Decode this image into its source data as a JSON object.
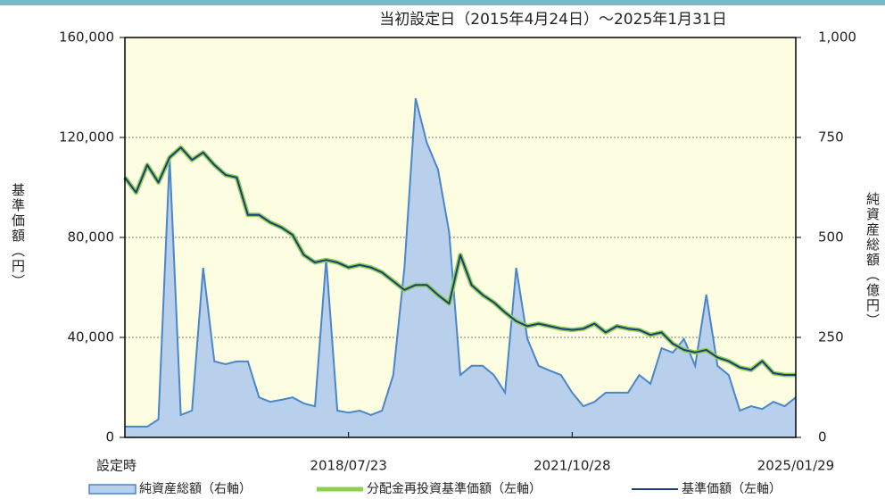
{
  "chart_data": {
    "type": "area-line",
    "title": "当初設定日（2015年4月24日）～2025年1月31日",
    "y_label": "基準価額（円）",
    "y2_label": "純資産総額（億円）",
    "categories": [
      "設定時",
      null,
      null,
      null,
      null,
      null,
      null,
      null,
      null,
      null,
      null,
      null,
      null,
      null,
      null,
      null,
      null,
      null,
      null,
      null,
      "2018/07/23",
      null,
      null,
      null,
      null,
      null,
      null,
      null,
      null,
      null,
      null,
      null,
      null,
      null,
      null,
      null,
      null,
      null,
      null,
      null,
      "2021/10/28",
      null,
      null,
      null,
      null,
      null,
      null,
      null,
      null,
      null,
      null,
      null,
      null,
      null,
      null,
      null,
      null,
      null,
      null,
      null,
      "2025/01/29"
    ],
    "ylim": [
      0,
      160000
    ],
    "yticks": [
      0,
      {
        "value": 40000,
        "label": "40,000"
      },
      {
        "value": 80000,
        "label": "80,000"
      },
      {
        "value": 120000,
        "label": "120,000"
      },
      {
        "value": 160000,
        "label": "160,000"
      }
    ],
    "y2lim": [
      0,
      1000
    ],
    "y2ticks": [
      0,
      250,
      500,
      750,
      {
        "value": 1000,
        "label": "1,000"
      }
    ],
    "grid": true,
    "legend": "bottom",
    "series": [
      {
        "name": "純資産総額（右軸）",
        "kind": "area",
        "axis": "y2",
        "color": "#b9d0ec",
        "stroke": "#4a86c8",
        "values": [
          27,
          27,
          27,
          45,
          700,
          56,
          67,
          424,
          190,
          183,
          190,
          190,
          100,
          89,
          94,
          100,
          85,
          78,
          446,
          67,
          62,
          67,
          56,
          67,
          156,
          424,
          848,
          737,
          670,
          513,
          156,
          179,
          179,
          156,
          112,
          424,
          246,
          179,
          167,
          156,
          112,
          78,
          89,
          112,
          112,
          112,
          156,
          134,
          223,
          212,
          246,
          179,
          357,
          179,
          156,
          67,
          78,
          71,
          89,
          78,
          100
        ]
      },
      {
        "name": "分配金再投資基準価額（左軸）",
        "kind": "line",
        "color": "#8fd14f",
        "values": [
          104000,
          98000,
          109000,
          102000,
          112000,
          116000,
          111000,
          114000,
          109000,
          105000,
          104000,
          89000,
          89000,
          86000,
          84000,
          81000,
          73000,
          70000,
          71000,
          70000,
          68000,
          69000,
          68000,
          66000,
          62500,
          59000,
          61000,
          61000,
          57000,
          53500,
          73000,
          61000,
          57000,
          54000,
          50000,
          46500,
          44500,
          45500,
          44500,
          43500,
          43000,
          43500,
          45500,
          42000,
          44500,
          43500,
          43000,
          41000,
          42000,
          37500,
          35000,
          34000,
          35000,
          32000,
          30500,
          28000,
          27000,
          30500,
          25700,
          25000,
          25000
        ]
      },
      {
        "name": "基準価額（左軸）",
        "kind": "line",
        "color": "#1b3f7e",
        "values": [
          104000,
          98000,
          109000,
          102000,
          112000,
          116000,
          111000,
          114000,
          109000,
          105000,
          104000,
          89000,
          89000,
          86000,
          84000,
          81000,
          73000,
          70000,
          71000,
          70000,
          68000,
          69000,
          68000,
          66000,
          62500,
          59000,
          61000,
          61000,
          57000,
          53500,
          73000,
          61000,
          57000,
          54000,
          50000,
          46500,
          44500,
          45500,
          44500,
          43500,
          43000,
          43500,
          45500,
          42000,
          44500,
          43500,
          43000,
          41000,
          42000,
          37500,
          35000,
          34000,
          35000,
          32000,
          30500,
          28000,
          27000,
          30500,
          25700,
          25000,
          25000
        ]
      }
    ]
  }
}
